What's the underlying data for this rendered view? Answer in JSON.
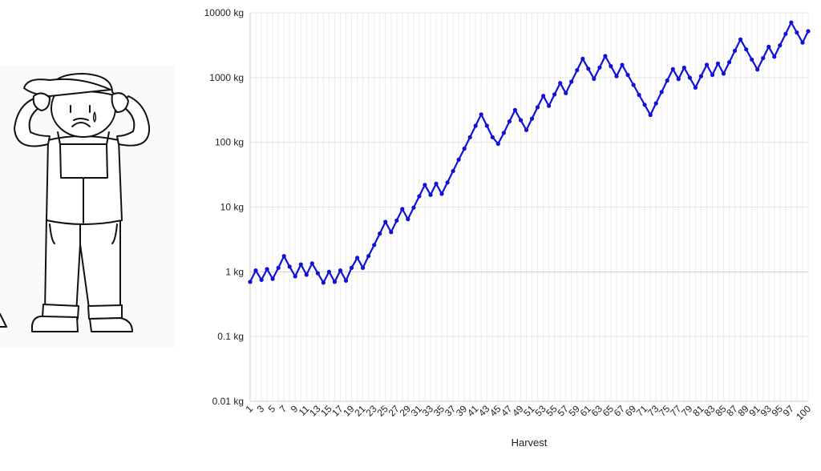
{
  "illustration": {
    "subject": "worried-farmer-drawing"
  },
  "chart_data": {
    "type": "line",
    "xlabel": "Harvest",
    "ylabel": "",
    "yscale": "log",
    "ylim": [
      0.01,
      10000
    ],
    "xlim": [
      1,
      100
    ],
    "grid": true,
    "line_color": "#1010d8",
    "y_ticks": [
      {
        "value": 10000,
        "label": "10000 kg"
      },
      {
        "value": 1000,
        "label": "1000 kg"
      },
      {
        "value": 100,
        "label": "100 kg"
      },
      {
        "value": 10,
        "label": "10 kg"
      },
      {
        "value": 1,
        "label": "1 kg"
      },
      {
        "value": 0.1,
        "label": "0.1 kg"
      },
      {
        "value": 0.01,
        "label": "0.01 kg"
      }
    ],
    "x_tick_labels": [
      "1",
      "3",
      "5",
      "7",
      "9",
      "11",
      "13",
      "15",
      "17",
      "19",
      "21",
      "23",
      "25",
      "27",
      "29",
      "31",
      "33",
      "35",
      "37",
      "39",
      "41",
      "43",
      "45",
      "47",
      "49",
      "51",
      "53",
      "55",
      "57",
      "59",
      "61",
      "63",
      "65",
      "67",
      "69",
      "71",
      "73",
      "75",
      "77",
      "79",
      "81",
      "83",
      "85",
      "87",
      "89",
      "91",
      "93",
      "95",
      "97",
      "100"
    ],
    "series": [
      {
        "x": [
          1,
          2,
          3,
          4,
          5,
          6,
          7,
          8,
          9,
          10,
          11,
          12,
          13,
          14,
          15,
          16,
          17,
          18,
          19,
          20,
          21,
          22,
          23,
          24,
          25,
          26,
          27,
          28,
          29,
          30,
          31,
          32,
          33,
          34,
          35,
          36,
          37,
          38,
          39,
          40,
          41,
          42,
          43,
          44,
          45,
          46,
          47,
          48,
          49,
          50,
          51,
          52,
          53,
          54,
          55,
          56,
          57,
          58,
          59,
          60,
          61,
          62,
          63,
          64,
          65,
          66,
          67,
          68,
          69,
          70,
          71,
          72,
          73,
          74,
          75,
          76,
          77,
          78,
          79,
          80,
          81,
          82,
          83,
          84,
          85,
          86,
          87,
          88,
          89,
          90,
          91,
          92,
          93,
          94,
          95,
          96,
          97,
          98,
          99,
          100
        ],
        "values": [
          0.7,
          1.05,
          0.75,
          1.1,
          0.78,
          1.15,
          1.75,
          1.2,
          0.85,
          1.3,
          0.9,
          1.35,
          0.95,
          0.68,
          1.0,
          0.7,
          1.05,
          0.73,
          1.15,
          1.65,
          1.15,
          1.75,
          2.6,
          3.9,
          5.9,
          4.1,
          6.2,
          9.3,
          6.5,
          9.8,
          14.7,
          22,
          15.4,
          23,
          16,
          24,
          36,
          54,
          80,
          120,
          180,
          270,
          180,
          120,
          95,
          140,
          210,
          315,
          220,
          155,
          232,
          348,
          522,
          365,
          548,
          822,
          575,
          862,
          1300,
          1950,
          1370,
          955,
          1430,
          2150,
          1500,
          1050,
          1570,
          1100,
          770,
          540,
          380,
          265,
          400,
          600,
          900,
          1350,
          950,
          1420,
          995,
          700,
          1050,
          1575,
          1100,
          1650,
          1150,
          1725,
          2590,
          3880,
          2720,
          1900,
          1330,
          2000,
          3000,
          2100,
          3150,
          4725,
          7090,
          4960,
          3470,
          5200
        ]
      }
    ]
  }
}
